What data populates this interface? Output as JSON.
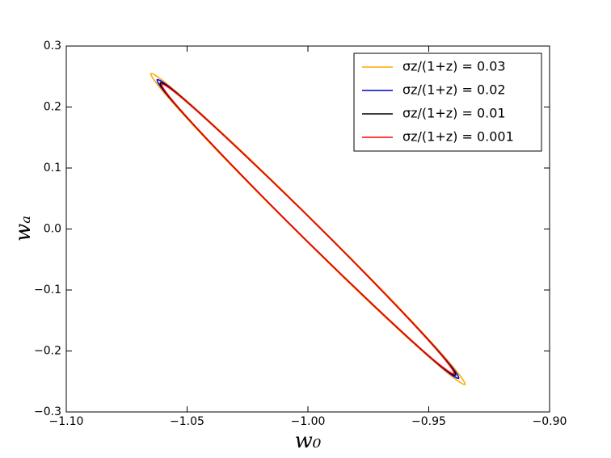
{
  "chart_data": {
    "type": "line",
    "xlabel": "w₀",
    "ylabel": "wₐ",
    "xlim": [
      -1.1,
      -0.9
    ],
    "xticks": [
      {
        "value": -1.1,
        "label": "−1.10"
      },
      {
        "value": -1.05,
        "label": "−1.05"
      },
      {
        "value": -1.0,
        "label": "−1.00"
      },
      {
        "value": -0.95,
        "label": "−0.95"
      },
      {
        "value": -0.9,
        "label": "−0.90"
      }
    ],
    "ylim": [
      -0.3,
      0.3
    ],
    "yticks": [
      {
        "value": -0.3,
        "label": "−0.3"
      },
      {
        "value": -0.2,
        "label": "−0.2"
      },
      {
        "value": -0.1,
        "label": "−0.1"
      },
      {
        "value": 0,
        "label": "0.0"
      },
      0.1,
      0.2,
      0.3
    ],
    "legend": "upper right",
    "series": [
      {
        "name": "σz/(1+z) = 0.03",
        "color": "#ffa500",
        "x": [
          -1.065,
          -1.0549,
          -1.03,
          -0.9972,
          -0.965,
          -0.9423,
          -0.935,
          -0.9451,
          -0.97,
          -1.0028,
          -1.035,
          -1.0577,
          -1.065
        ],
        "values": [
          0.255,
          0.2265,
          0.1373,
          0.0113,
          -0.1177,
          -0.2151,
          -0.255,
          -0.2265,
          -0.1373,
          -0.0113,
          0.1177,
          0.2151,
          0.255
        ]
      },
      {
        "name": "σz/(1+z) = 0.02",
        "color": "#0000cc",
        "x": [
          -1.0624,
          -1.0526,
          -1.0289,
          -0.9973,
          -0.9665,
          -0.9446,
          -0.9376,
          -0.9474,
          -0.9711,
          -1.0027,
          -1.0335,
          -1.0554,
          -1.0624
        ],
        "values": [
          0.2448,
          0.2174,
          0.1317,
          0.0107,
          -0.1131,
          -0.2066,
          -0.2448,
          -0.2174,
          -0.1317,
          -0.0107,
          0.1131,
          0.2066,
          0.2448
        ]
      },
      {
        "name": "σz/(1+z) = 0.01",
        "color": "#000000",
        "x": [
          -1.0611,
          -1.0515,
          -1.0283,
          -0.9973,
          -0.9671,
          -0.9457,
          -0.9389,
          -0.9485,
          -0.9717,
          -1.0027,
          -1.0329,
          -1.0543,
          -1.0611
        ],
        "values": [
          0.2397,
          0.213,
          0.1292,
          0.0107,
          -0.1106,
          -0.2022,
          -0.2397,
          -0.213,
          -0.1292,
          -0.0107,
          0.1106,
          0.2022,
          0.2397
        ]
      },
      {
        "name": "σz/(1+z) = 0.001",
        "color": "#ff0000",
        "x": [
          -1.0605,
          -1.051,
          -1.028,
          -0.9973,
          -0.9674,
          -0.9462,
          -0.9395,
          -0.949,
          -0.972,
          -1.0027,
          -1.0326,
          -1.0538,
          -1.0605
        ],
        "values": [
          0.2375,
          0.2111,
          0.1281,
          0.0107,
          -0.1095,
          -0.2003,
          -0.2375,
          -0.2111,
          -0.1281,
          -0.0107,
          0.1095,
          0.2003,
          0.2375
        ]
      }
    ]
  }
}
